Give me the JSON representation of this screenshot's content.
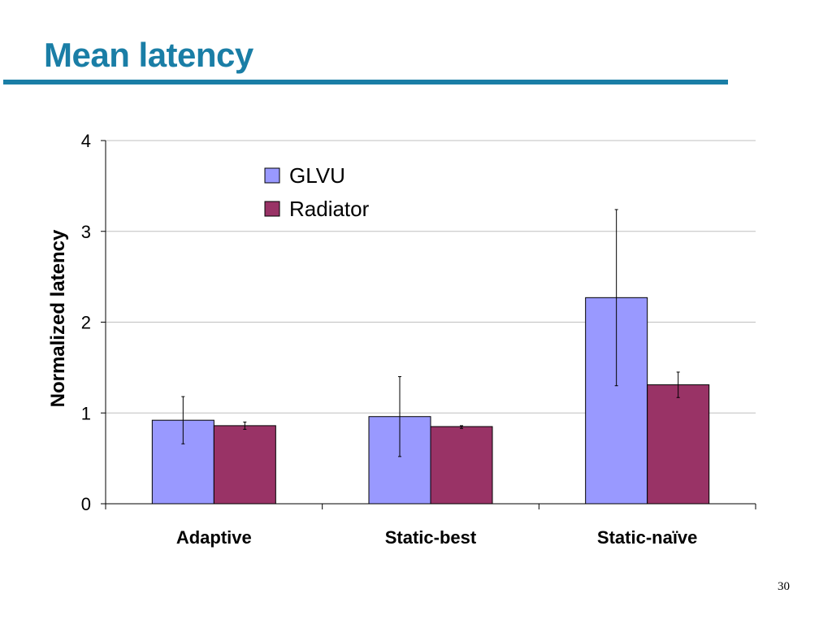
{
  "slide": {
    "title": "Mean latency",
    "page_number": "30",
    "accent_color": "#1A7EA6"
  },
  "chart_data": {
    "type": "bar",
    "title": "",
    "xlabel": "",
    "ylabel": "Normalized latency",
    "ylim": [
      0,
      4
    ],
    "yticks": [
      0,
      1,
      2,
      3,
      4
    ],
    "grid": true,
    "legend_position": "top-center",
    "categories": [
      "Adaptive",
      "Static-best",
      "Static-naïve"
    ],
    "series": [
      {
        "name": "GLVU",
        "color": "#9999FF",
        "values": [
          0.92,
          0.96,
          2.27
        ],
        "error": [
          [
            0.66,
            1.18
          ],
          [
            0.52,
            1.4
          ],
          [
            1.3,
            3.24
          ]
        ]
      },
      {
        "name": "Radiator",
        "color": "#993366",
        "values": [
          0.86,
          0.85,
          1.31
        ],
        "error": [
          [
            0.82,
            0.9
          ],
          [
            0.83,
            0.86
          ],
          [
            1.17,
            1.45
          ]
        ]
      }
    ]
  }
}
